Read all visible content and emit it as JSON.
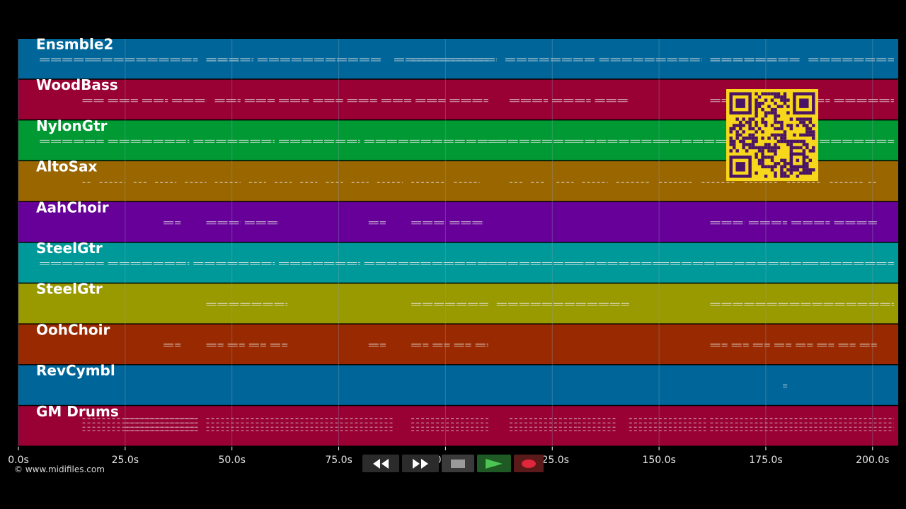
{
  "app": {
    "copyright": "© www.midifiles.com"
  },
  "colors": {
    "background": "#000000",
    "grid": "#8fa3b8",
    "note": "#e8e8e8",
    "qr_bg": "#f7d71c",
    "qr_fg": "#4a1466"
  },
  "tracks": [
    {
      "name": "Ensmble2",
      "color": "#006699",
      "notes": [
        [
          5,
          17
        ],
        [
          17,
          42
        ],
        [
          44,
          55
        ],
        [
          56,
          85
        ],
        [
          88,
          112
        ],
        [
          114,
          135
        ],
        [
          136,
          160
        ],
        [
          162,
          183
        ],
        [
          185,
          205
        ],
        [
          44,
          52
        ],
        [
          92,
          110
        ],
        [
          162,
          178
        ]
      ]
    },
    {
      "name": "WoodBass",
      "color": "#990033",
      "notes": [
        [
          15,
          20
        ],
        [
          21,
          28
        ],
        [
          29,
          35
        ],
        [
          36,
          44
        ],
        [
          46,
          52
        ],
        [
          53,
          60
        ],
        [
          61,
          68
        ],
        [
          69,
          76
        ],
        [
          77,
          84
        ],
        [
          85,
          92
        ],
        [
          93,
          100
        ],
        [
          101,
          110
        ],
        [
          115,
          124
        ],
        [
          125,
          134
        ],
        [
          135,
          143
        ],
        [
          162,
          170
        ],
        [
          171,
          180
        ],
        [
          181,
          190
        ],
        [
          191,
          205
        ]
      ]
    },
    {
      "name": "NylonGtr",
      "color": "#009933",
      "notes": [
        [
          5,
          20
        ],
        [
          21,
          40
        ],
        [
          41,
          60
        ],
        [
          61,
          80
        ],
        [
          81,
          110
        ],
        [
          110,
          112
        ],
        [
          112,
          130
        ],
        [
          130,
          150
        ],
        [
          150,
          165
        ],
        [
          165,
          185
        ],
        [
          185,
          205
        ]
      ]
    },
    {
      "name": "AltoSax",
      "color": "#996600",
      "notes": [
        [
          15,
          17
        ],
        [
          19,
          25
        ],
        [
          27,
          30
        ],
        [
          32,
          37
        ],
        [
          39,
          44
        ],
        [
          46,
          52
        ],
        [
          54,
          58
        ],
        [
          60,
          64
        ],
        [
          66,
          70
        ],
        [
          72,
          76
        ],
        [
          78,
          82
        ],
        [
          84,
          90
        ],
        [
          92,
          100
        ],
        [
          102,
          108
        ],
        [
          115,
          118
        ],
        [
          120,
          123
        ],
        [
          126,
          130
        ],
        [
          132,
          138
        ],
        [
          140,
          148
        ],
        [
          150,
          158
        ],
        [
          160,
          168
        ],
        [
          170,
          178
        ],
        [
          180,
          188
        ],
        [
          190,
          198
        ],
        [
          199,
          201
        ]
      ]
    },
    {
      "name": "AahChoir",
      "color": "#660099",
      "notes": [
        [
          34,
          38
        ],
        [
          44,
          52
        ],
        [
          53,
          61
        ],
        [
          82,
          86
        ],
        [
          92,
          100
        ],
        [
          101,
          109
        ],
        [
          162,
          170
        ],
        [
          171,
          180
        ],
        [
          181,
          190
        ],
        [
          191,
          201
        ]
      ]
    },
    {
      "name": "SteelGtr",
      "color": "#009999",
      "notes": [
        [
          5,
          20
        ],
        [
          21,
          40
        ],
        [
          41,
          60
        ],
        [
          61,
          80
        ],
        [
          81,
          110
        ],
        [
          110,
          112
        ],
        [
          112,
          130
        ],
        [
          130,
          150
        ],
        [
          150,
          165
        ],
        [
          165,
          185
        ],
        [
          185,
          205
        ]
      ]
    },
    {
      "name": "SteelGtr",
      "color": "#999900",
      "notes": [
        [
          44,
          63
        ],
        [
          92,
          110
        ],
        [
          112,
          143
        ],
        [
          162,
          205
        ]
      ]
    },
    {
      "name": "OohChoir",
      "color": "#992900",
      "notes": [
        [
          34,
          38
        ],
        [
          44,
          48
        ],
        [
          49,
          53
        ],
        [
          54,
          58
        ],
        [
          59,
          63
        ],
        [
          82,
          86
        ],
        [
          92,
          96
        ],
        [
          97,
          101
        ],
        [
          102,
          106
        ],
        [
          107,
          110
        ],
        [
          162,
          166
        ],
        [
          167,
          171
        ],
        [
          172,
          176
        ],
        [
          177,
          181
        ],
        [
          182,
          186
        ],
        [
          187,
          191
        ],
        [
          192,
          196
        ],
        [
          197,
          201
        ]
      ]
    },
    {
      "name": "RevCymbl",
      "color": "#006699",
      "notes": [
        [
          179,
          180
        ]
      ]
    },
    {
      "name": "GM Drums",
      "color": "#990033",
      "notes": [
        [
          15,
          42
        ],
        [
          25,
          42
        ],
        [
          44,
          88
        ],
        [
          92,
          110
        ],
        [
          115,
          131
        ],
        [
          143,
          161
        ],
        [
          162,
          205
        ],
        [
          131,
          140
        ]
      ]
    }
  ],
  "axis": {
    "ticks": [
      {
        "value": 0,
        "label": "0.0s"
      },
      {
        "value": 25,
        "label": "25.0s"
      },
      {
        "value": 50,
        "label": "50.0s"
      },
      {
        "value": 75,
        "label": "75.0s"
      },
      {
        "value": 100,
        "label": "100.0s"
      },
      {
        "value": 125,
        "label": "125.0s"
      },
      {
        "value": 150,
        "label": "150.0s"
      },
      {
        "value": 175,
        "label": "175.0s"
      },
      {
        "value": 200,
        "label": "200.0s"
      }
    ],
    "range": [
      0,
      206
    ]
  },
  "transport": {
    "rewind": {
      "icon": "rewind-icon",
      "color": "#2b2b2b"
    },
    "fast_forward": {
      "icon": "fast-forward-icon",
      "color": "#2b2b2b"
    },
    "stop": {
      "icon": "stop-icon",
      "color": "#3a3a3a"
    },
    "play": {
      "icon": "play-icon",
      "color": "#1f5a24"
    },
    "record": {
      "icon": "record-icon",
      "color": "#5a1a1a"
    }
  }
}
